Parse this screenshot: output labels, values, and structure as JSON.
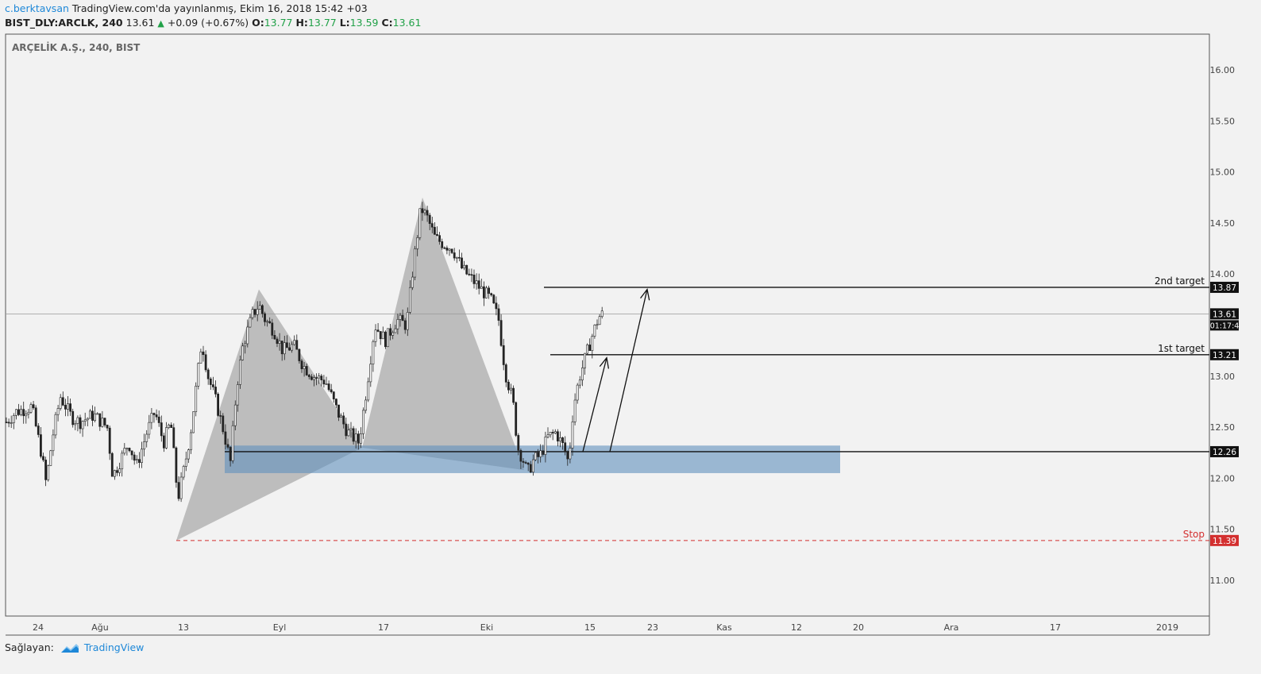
{
  "header": {
    "user": "c.berktavsan",
    "published_text": " TradingView.com'da yayınlanmış, Ekim 16, 2018 15:42 +03",
    "symbol": "BIST_DLY:ARCLK, 240",
    "price": "13.61",
    "change": "+0.09 (+0.67%)",
    "o_label": "O:",
    "o": "13.77",
    "h_label": "H:",
    "h": "13.77",
    "l_label": "L:",
    "l": "13.59",
    "c_label": "C:",
    "c": "13.61"
  },
  "footer": {
    "provider_label": "Sağlayan:",
    "brand": "TradingView"
  },
  "chart_data": {
    "type": "candlestick",
    "title": "ARÇELİK A.Ş., 240, BIST",
    "ylim": [
      10.65,
      16.35
    ],
    "y_ticks": [
      "16.00",
      "15.50",
      "15.00",
      "14.50",
      "14.00",
      "13.50",
      "13.00",
      "12.50",
      "12.00",
      "11.50",
      "11.00"
    ],
    "x_ticks": [
      {
        "label": "24",
        "pos": 48
      },
      {
        "label": "Ağu",
        "pos": 126
      },
      {
        "label": "13",
        "pos": 231
      },
      {
        "label": "Eyl",
        "pos": 352
      },
      {
        "label": "17",
        "pos": 483
      },
      {
        "label": "Eki",
        "pos": 613
      },
      {
        "label": "15",
        "pos": 743
      },
      {
        "label": "23",
        "pos": 822
      },
      {
        "label": "Kas",
        "pos": 912
      },
      {
        "label": "12",
        "pos": 1003
      },
      {
        "label": "20",
        "pos": 1081
      },
      {
        "label": "Ara",
        "pos": 1198
      },
      {
        "label": "17",
        "pos": 1329
      },
      {
        "label": "2019",
        "pos": 1470
      }
    ],
    "price_path": [
      [
        8,
        12.55
      ],
      [
        20,
        12.65
      ],
      [
        40,
        12.7
      ],
      [
        52,
        12.25
      ],
      [
        58,
        11.95
      ],
      [
        66,
        12.4
      ],
      [
        76,
        12.8
      ],
      [
        90,
        12.6
      ],
      [
        100,
        12.55
      ],
      [
        118,
        12.62
      ],
      [
        135,
        12.5
      ],
      [
        142,
        12.02
      ],
      [
        150,
        12.15
      ],
      [
        162,
        12.35
      ],
      [
        172,
        12.12
      ],
      [
        185,
        12.45
      ],
      [
        195,
        12.65
      ],
      [
        206,
        12.35
      ],
      [
        215,
        12.55
      ],
      [
        224,
        11.8
      ],
      [
        232,
        12.1
      ],
      [
        240,
        12.45
      ],
      [
        248,
        12.95
      ],
      [
        254,
        13.35
      ],
      [
        262,
        13.0
      ],
      [
        272,
        12.75
      ],
      [
        282,
        12.45
      ],
      [
        290,
        12.15
      ],
      [
        298,
        12.9
      ],
      [
        306,
        13.3
      ],
      [
        318,
        13.6
      ],
      [
        326,
        13.7
      ],
      [
        334,
        13.55
      ],
      [
        345,
        13.45
      ],
      [
        356,
        13.25
      ],
      [
        370,
        13.3
      ],
      [
        382,
        13.1
      ],
      [
        395,
        13.0
      ],
      [
        410,
        12.95
      ],
      [
        425,
        12.65
      ],
      [
        438,
        12.45
      ],
      [
        452,
        12.35
      ],
      [
        462,
        12.9
      ],
      [
        472,
        13.5
      ],
      [
        485,
        13.35
      ],
      [
        500,
        13.55
      ],
      [
        512,
        13.5
      ],
      [
        520,
        14.05
      ],
      [
        530,
        14.65
      ],
      [
        538,
        14.55
      ],
      [
        548,
        14.35
      ],
      [
        558,
        14.3
      ],
      [
        570,
        14.25
      ],
      [
        582,
        14.05
      ],
      [
        594,
        13.95
      ],
      [
        606,
        13.85
      ],
      [
        618,
        13.75
      ],
      [
        628,
        13.55
      ],
      [
        636,
        13.05
      ],
      [
        646,
        12.75
      ],
      [
        652,
        12.3
      ],
      [
        658,
        12.2
      ],
      [
        664,
        12.05
      ],
      [
        672,
        12.18
      ],
      [
        680,
        12.22
      ],
      [
        690,
        12.4
      ],
      [
        700,
        12.45
      ],
      [
        710,
        12.3
      ],
      [
        716,
        12.15
      ],
      [
        722,
        12.7
      ],
      [
        730,
        13.0
      ],
      [
        738,
        13.2
      ],
      [
        746,
        13.4
      ],
      [
        754,
        13.58
      ],
      [
        760,
        13.61
      ]
    ],
    "last_price": 13.61,
    "countdown": "01:17:4",
    "levels": [
      {
        "label": "2nd target",
        "value": 13.87,
        "x1": 685
      },
      {
        "label": "1st target",
        "value": 13.21,
        "x1": 693
      },
      {
        "label": "",
        "value": 12.26,
        "x1": 283
      },
      {
        "label": "Stop",
        "value": 11.39,
        "x1": 222
      }
    ],
    "zone": {
      "low": 12.05,
      "high": 12.32,
      "x1": 283,
      "x2": 1058
    },
    "pattern_points": [
      {
        "x": 222,
        "v": 11.39
      },
      {
        "x": 326,
        "v": 13.85
      },
      {
        "x": 456,
        "v": 12.3
      },
      {
        "x": 532,
        "v": 14.75
      },
      {
        "x": 660,
        "v": 12.08
      }
    ]
  }
}
